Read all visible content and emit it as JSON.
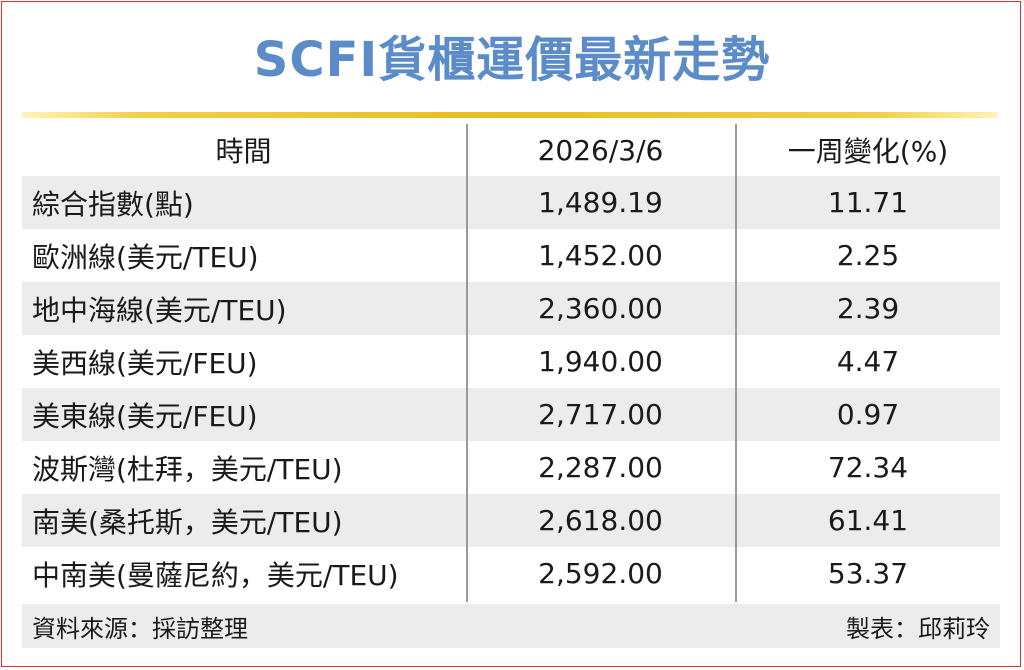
{
  "title": "SCFI貨櫃運價最新走勢",
  "table": {
    "headers": [
      "時間",
      "2026/3/6",
      "一周變化(%)"
    ],
    "rows": [
      {
        "route": "綜合指數(點)",
        "value": "1,489.19",
        "change": "11.71"
      },
      {
        "route": "歐洲線(美元/TEU)",
        "value": "1,452.00",
        "change": "2.25"
      },
      {
        "route": "地中海線(美元/TEU)",
        "value": "2,360.00",
        "change": "2.39"
      },
      {
        "route": "美西線(美元/FEU)",
        "value": "1,940.00",
        "change": "4.47"
      },
      {
        "route": "美東線(美元/FEU)",
        "value": "2,717.00",
        "change": "0.97"
      },
      {
        "route": "波斯灣(杜拜，美元/TEU)",
        "value": "2,287.00",
        "change": "72.34"
      },
      {
        "route": "南美(桑托斯，美元/TEU)",
        "value": "2,618.00",
        "change": "61.41"
      },
      {
        "route": "中南美(曼薩尼約，美元/TEU)",
        "value": "2,592.00",
        "change": "53.37"
      }
    ]
  },
  "footer": {
    "source": "資料來源：採訪整理",
    "credit": "製表：邱莉玲"
  },
  "colors": {
    "title": "#5b8cc9",
    "rule": "#e9bd1e",
    "shade": "#ececec",
    "frame": "#e0302a"
  }
}
